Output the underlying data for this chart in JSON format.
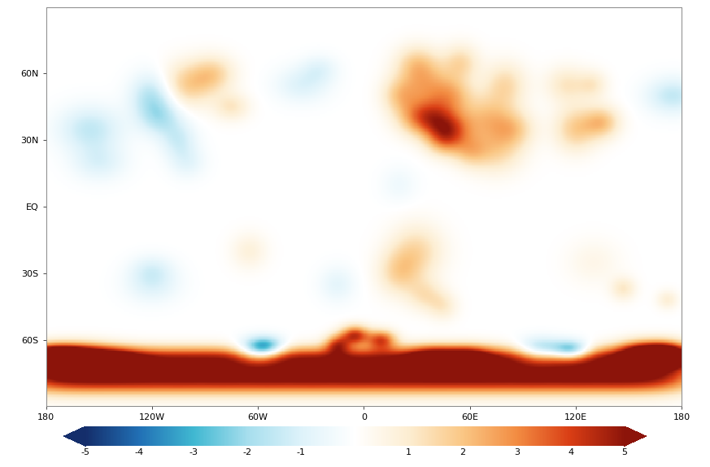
{
  "vmin": -5,
  "vmax": 5,
  "xticks": [
    -180,
    -120,
    -60,
    0,
    60,
    120,
    180
  ],
  "xticklabels": [
    "180",
    "120W",
    "60W",
    "0",
    "60E",
    "120E",
    "180"
  ],
  "yticks": [
    60,
    30,
    0,
    -30,
    -60
  ],
  "yticklabels": [
    "60N",
    "30N",
    "EQ",
    "30S",
    "60S"
  ],
  "grid_color": "#aaaaaa",
  "fig_width": 8.73,
  "fig_height": 5.74,
  "dpi": 100,
  "colormap_nodes": [
    [
      -5.0,
      [
        0.08,
        0.18,
        0.42
      ]
    ],
    [
      -4.0,
      [
        0.13,
        0.44,
        0.71
      ]
    ],
    [
      -3.0,
      [
        0.25,
        0.72,
        0.82
      ]
    ],
    [
      -2.0,
      [
        0.65,
        0.87,
        0.93
      ]
    ],
    [
      -1.0,
      [
        0.87,
        0.95,
        0.98
      ]
    ],
    [
      0.0,
      [
        1.0,
        1.0,
        1.0
      ]
    ],
    [
      1.0,
      [
        0.99,
        0.93,
        0.82
      ]
    ],
    [
      2.0,
      [
        0.98,
        0.78,
        0.52
      ]
    ],
    [
      3.0,
      [
        0.95,
        0.55,
        0.26
      ]
    ],
    [
      4.0,
      [
        0.85,
        0.24,
        0.08
      ]
    ],
    [
      5.0,
      [
        0.55,
        0.08,
        0.04
      ]
    ]
  ]
}
